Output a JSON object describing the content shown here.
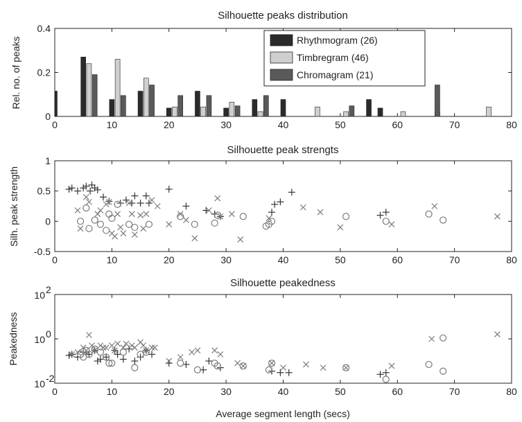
{
  "chart_data": [
    {
      "type": "bar",
      "title": "Silhouette peaks distribution",
      "xlabel": "",
      "ylabel": "Rel. no. of peaks",
      "xlim": [
        0,
        80
      ],
      "ylim": [
        0,
        0.4
      ],
      "xticks": [
        0,
        10,
        20,
        30,
        40,
        50,
        60,
        70,
        80
      ],
      "yticks": [
        0,
        0.2,
        0.4
      ],
      "ytick_labels": [
        "0",
        "0.2",
        "0.4"
      ],
      "legend_position": "top-right",
      "series": [
        {
          "name": "Rhythmogram (26)",
          "color": "#2b2b2b",
          "x": [
            0,
            5,
            10,
            15,
            20,
            25,
            30,
            35,
            40,
            55,
            57
          ],
          "values": [
            0.115,
            0.27,
            0.077,
            0.115,
            0.038,
            0.115,
            0.038,
            0.077,
            0.077,
            0.077,
            0.038
          ]
        },
        {
          "name": "Timbregram (46)",
          "color": "#cfcfcf",
          "x": [
            6,
            11,
            16,
            21,
            26,
            31,
            36,
            46,
            51,
            61,
            67,
            76
          ],
          "values": [
            0.24,
            0.26,
            0.174,
            0.043,
            0.043,
            0.065,
            0.022,
            0.043,
            0.022,
            0.022,
            0.022,
            0.043
          ]
        },
        {
          "name": "Chromagram (21)",
          "color": "#5a5a5a",
          "x": [
            7,
            12,
            17,
            22,
            27,
            32,
            37,
            52,
            67
          ],
          "values": [
            0.19,
            0.095,
            0.143,
            0.095,
            0.095,
            0.048,
            0.095,
            0.048,
            0.143
          ]
        }
      ]
    },
    {
      "type": "scatter",
      "title": "Silhouette peak strengts",
      "xlabel": "",
      "ylabel": "Silh. peak strength",
      "xlim": [
        0,
        80
      ],
      "ylim": [
        -0.5,
        1
      ],
      "xticks": [
        0,
        10,
        20,
        30,
        40,
        50,
        60,
        70,
        80
      ],
      "yticks": [
        -0.5,
        0,
        0.5,
        1
      ],
      "ytick_labels": [
        "-0.5",
        "0",
        "0.5",
        "1"
      ],
      "series": [
        {
          "marker": "plus",
          "color": "#333333",
          "points": [
            [
              2.5,
              0.53
            ],
            [
              3,
              0.55
            ],
            [
              4,
              0.5
            ],
            [
              5,
              0.55
            ],
            [
              5.5,
              0.58
            ],
            [
              6.2,
              0.5
            ],
            [
              6.5,
              0.6
            ],
            [
              7,
              0.55
            ],
            [
              7.5,
              0.52
            ],
            [
              8.5,
              0.4
            ],
            [
              9.5,
              0.33
            ],
            [
              11.5,
              0.3
            ],
            [
              12.5,
              0.35
            ],
            [
              13.5,
              0.3
            ],
            [
              14,
              0.42
            ],
            [
              15,
              0.3
            ],
            [
              16,
              0.42
            ],
            [
              16.5,
              0.3
            ],
            [
              20,
              0.53
            ],
            [
              23,
              0.25
            ],
            [
              26.5,
              0.18
            ],
            [
              28,
              0.12
            ],
            [
              29,
              0.08
            ],
            [
              38,
              0.15
            ],
            [
              38.5,
              0.28
            ],
            [
              39.5,
              0.32
            ],
            [
              41.5,
              0.48
            ],
            [
              57,
              0.1
            ],
            [
              58,
              0.15
            ]
          ]
        },
        {
          "marker": "x",
          "color": "#7a7a7a",
          "points": [
            [
              4,
              0.18
            ],
            [
              4.5,
              -0.12
            ],
            [
              5.5,
              0.4
            ],
            [
              6,
              0.32
            ],
            [
              7.5,
              0.12
            ],
            [
              8,
              0.18
            ],
            [
              9,
              0.28
            ],
            [
              9.5,
              0.32
            ],
            [
              10,
              -0.2
            ],
            [
              10.5,
              -0.25
            ],
            [
              11,
              0.12
            ],
            [
              11.5,
              -0.1
            ],
            [
              12,
              -0.2
            ],
            [
              13,
              0.3
            ],
            [
              13.5,
              0.12
            ],
            [
              14,
              -0.22
            ],
            [
              15,
              0.1
            ],
            [
              15.5,
              -0.12
            ],
            [
              16,
              0.12
            ],
            [
              17,
              0.35
            ],
            [
              18,
              0.25
            ],
            [
              20,
              -0.05
            ],
            [
              22,
              0.12
            ],
            [
              23,
              0.02
            ],
            [
              24.5,
              -0.28
            ],
            [
              27,
              0.18
            ],
            [
              28.5,
              0.38
            ],
            [
              29,
              0.08
            ],
            [
              31,
              0.12
            ],
            [
              32.5,
              -0.3
            ],
            [
              37.5,
              0.05
            ],
            [
              43.5,
              0.23
            ],
            [
              46.5,
              0.15
            ],
            [
              50,
              -0.1
            ],
            [
              59,
              -0.05
            ],
            [
              66.5,
              0.25
            ],
            [
              77.5,
              0.08
            ]
          ]
        },
        {
          "marker": "circle",
          "color": "#7a7a7a",
          "points": [
            [
              4.5,
              0.0
            ],
            [
              5.5,
              0.22
            ],
            [
              6,
              -0.12
            ],
            [
              7,
              0.02
            ],
            [
              8,
              -0.05
            ],
            [
              9,
              -0.15
            ],
            [
              9.5,
              0.12
            ],
            [
              10,
              0.05
            ],
            [
              11,
              0.28
            ],
            [
              13,
              -0.05
            ],
            [
              14,
              -0.1
            ],
            [
              16.5,
              -0.05
            ],
            [
              22,
              0.08
            ],
            [
              24.5,
              -0.05
            ],
            [
              28,
              -0.03
            ],
            [
              28.5,
              0.1
            ],
            [
              33,
              0.08
            ],
            [
              37,
              -0.08
            ],
            [
              37.5,
              -0.05
            ],
            [
              38,
              0.0
            ],
            [
              51,
              0.08
            ],
            [
              58,
              0.0
            ],
            [
              65.5,
              0.12
            ],
            [
              68,
              0.02
            ]
          ]
        }
      ]
    },
    {
      "type": "scatter",
      "title": "Silhouette peakedness",
      "xlabel": "Average segment length (secs)",
      "ylabel": "Peakedness",
      "xscale": "log-y",
      "xlim": [
        0,
        80
      ],
      "ylim": [
        0.01,
        100
      ],
      "xticks": [
        0,
        10,
        20,
        30,
        40,
        50,
        60,
        70,
        80
      ],
      "ytick_base": "10",
      "ytick_exponents": [
        "-2",
        "0",
        "2"
      ],
      "ytick_values": [
        0.01,
        1,
        100
      ],
      "series": [
        {
          "marker": "plus",
          "color": "#333333",
          "points": [
            [
              2.5,
              0.18
            ],
            [
              3,
              0.2
            ],
            [
              4,
              0.15
            ],
            [
              5,
              0.25
            ],
            [
              6,
              0.2
            ],
            [
              7,
              0.3
            ],
            [
              7.5,
              0.1
            ],
            [
              8,
              0.12
            ],
            [
              9,
              0.15
            ],
            [
              10.5,
              0.3
            ],
            [
              11,
              0.2
            ],
            [
              12,
              0.12
            ],
            [
              13,
              0.35
            ],
            [
              14,
              0.1
            ],
            [
              15,
              0.15
            ],
            [
              16,
              0.3
            ],
            [
              17,
              0.2
            ],
            [
              20,
              0.08
            ],
            [
              23,
              0.07
            ],
            [
              26,
              0.04
            ],
            [
              27,
              0.1
            ],
            [
              29,
              0.05
            ],
            [
              38,
              0.035
            ],
            [
              39.5,
              0.03
            ],
            [
              41,
              0.03
            ],
            [
              57,
              0.025
            ],
            [
              58,
              0.03
            ]
          ]
        },
        {
          "marker": "x",
          "color": "#7a7a7a",
          "points": [
            [
              3,
              0.2
            ],
            [
              4,
              0.25
            ],
            [
              5,
              0.4
            ],
            [
              5.5,
              0.3
            ],
            [
              6,
              1.5
            ],
            [
              6.5,
              0.5
            ],
            [
              7,
              0.3
            ],
            [
              8,
              0.5
            ],
            [
              8.5,
              0.4
            ],
            [
              9,
              0.4
            ],
            [
              10,
              0.5
            ],
            [
              10.5,
              0.3
            ],
            [
              11,
              0.6
            ],
            [
              12,
              0.4
            ],
            [
              12.5,
              0.6
            ],
            [
              13.5,
              0.5
            ],
            [
              14,
              0.4
            ],
            [
              15,
              0.7
            ],
            [
              15.5,
              0.5
            ],
            [
              16,
              0.3
            ],
            [
              17,
              0.4
            ],
            [
              17.5,
              0.4
            ],
            [
              20,
              0.1
            ],
            [
              22,
              0.15
            ],
            [
              24,
              0.25
            ],
            [
              25,
              0.3
            ],
            [
              28,
              0.3
            ],
            [
              29,
              0.2
            ],
            [
              32,
              0.08
            ],
            [
              33,
              0.06
            ],
            [
              38,
              0.08
            ],
            [
              40,
              0.05
            ],
            [
              44,
              0.07
            ],
            [
              47,
              0.05
            ],
            [
              51,
              0.05
            ],
            [
              59,
              0.06
            ],
            [
              66,
              1.0
            ],
            [
              77.5,
              1.6
            ]
          ]
        },
        {
          "marker": "circle",
          "color": "#7a7a7a",
          "points": [
            [
              4.5,
              0.2
            ],
            [
              5,
              0.15
            ],
            [
              5.5,
              0.3
            ],
            [
              6,
              0.2
            ],
            [
              7,
              0.35
            ],
            [
              8,
              0.25
            ],
            [
              9,
              0.15
            ],
            [
              9.5,
              0.08
            ],
            [
              10,
              0.08
            ],
            [
              12,
              0.25
            ],
            [
              14,
              0.05
            ],
            [
              15,
              0.2
            ],
            [
              16,
              0.25
            ],
            [
              22,
              0.08
            ],
            [
              25,
              0.04
            ],
            [
              28,
              0.08
            ],
            [
              28.5,
              0.06
            ],
            [
              33,
              0.06
            ],
            [
              37.5,
              0.04
            ],
            [
              38,
              0.08
            ],
            [
              51,
              0.05
            ],
            [
              58,
              0.015
            ],
            [
              65.5,
              0.07
            ],
            [
              68,
              1.1
            ],
            [
              68,
              0.035
            ]
          ]
        }
      ]
    }
  ]
}
